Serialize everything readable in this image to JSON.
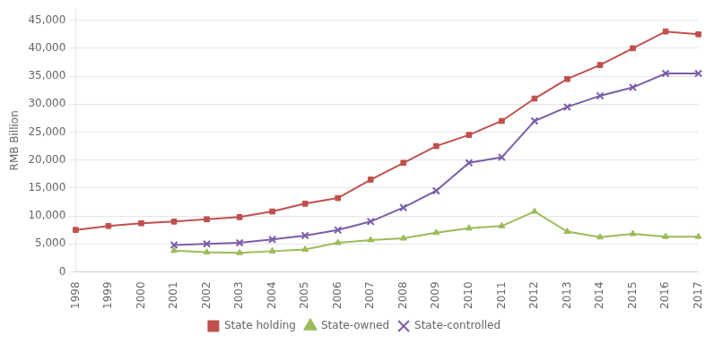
{
  "chart_data": {
    "type": "line",
    "categories": [
      "1998",
      "1999",
      "2000",
      "2001",
      "2002",
      "2003",
      "2004",
      "2005",
      "2006",
      "2007",
      "2008",
      "2009",
      "2010",
      "2011",
      "2012",
      "2013",
      "2014",
      "2015",
      "2016",
      "2017"
    ],
    "series": [
      {
        "name": "State holding",
        "color": "#C0504D",
        "marker": "square",
        "values": [
          7500,
          8200,
          8700,
          9000,
          9400,
          9800,
          10800,
          12200,
          13200,
          16500,
          19500,
          22500,
          24500,
          27000,
          31000,
          34500,
          37000,
          40000,
          43000,
          42500
        ]
      },
      {
        "name": "State-owned",
        "color": "#9BBB59",
        "marker": "triangle",
        "values": [
          null,
          null,
          null,
          3800,
          3500,
          3400,
          3700,
          4000,
          5200,
          5700,
          6000,
          7000,
          7800,
          8200,
          10800,
          7200,
          6200,
          6800,
          6300,
          6300
        ]
      },
      {
        "name": "State-controlled",
        "color": "#7B5EA7",
        "marker": "x",
        "values": [
          null,
          null,
          null,
          4800,
          5000,
          5200,
          5800,
          6500,
          7500,
          9000,
          11500,
          14500,
          19500,
          20500,
          27000,
          29500,
          31500,
          33000,
          35500,
          35500
        ]
      }
    ],
    "ylabel": "RMB Billion",
    "ylim": [
      0,
      47000
    ],
    "yticks": [
      0,
      {
        "value": 5000,
        "label": "5,000"
      },
      {
        "value": 10000,
        "label": "10,000"
      },
      {
        "value": 15000,
        "label": "15,000"
      },
      {
        "value": 20000,
        "label": "20,000"
      },
      {
        "value": 25000,
        "label": "25,000"
      },
      {
        "value": 30000,
        "label": "30,000"
      },
      {
        "value": 35000,
        "label": "35,000"
      },
      {
        "value": 40000,
        "label": "40,000"
      },
      {
        "value": 45000,
        "label": "45,000"
      }
    ],
    "grid": true,
    "legend": "bottom"
  }
}
